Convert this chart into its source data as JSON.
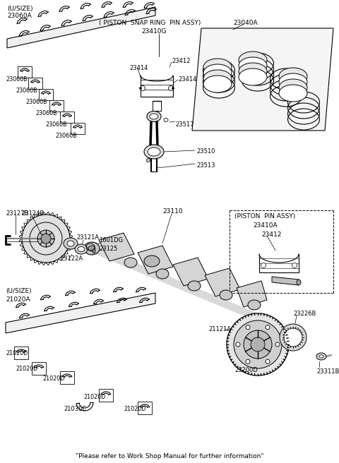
{
  "bg_color": "#ffffff",
  "line_color": "#000000",
  "gray": "#aaaaaa",
  "dark_gray": "#555555",
  "footer_text": "\"Please refer to Work Shop Manual for further information\"",
  "labels": {
    "usize_top": "(U/SIZE)",
    "part_23060A": "23060A",
    "part_23060B_1": "23060B",
    "piston_snap_ring": "( PISTON  SNAP RING  PIN ASSY)",
    "part_23410G": "23410G",
    "part_23040A": "23040A",
    "part_23414_left": "23414",
    "part_23412_top": "23412",
    "part_23414_right": "23414",
    "part_23517": "23517",
    "part_23510": "23510",
    "part_23513": "23513",
    "part_23127B": "23127B",
    "part_23124B": "23124B",
    "part_23121A": "23121A",
    "part_1601DG": "1601DG",
    "part_23125": "23125",
    "part_23122A": "23122A",
    "part_23110": "23110",
    "piston_pin_assy": "(PISTON  PIN ASSY)",
    "part_23410A": "23410A",
    "part_23412b": "23412",
    "usize_bottom": "(U/SIZE)",
    "part_21020A": "21020A",
    "part_21020D": "21020D",
    "part_21030C": "21030C",
    "part_21121A": "21121A",
    "part_23226B": "23226B",
    "part_23200D": "23200D",
    "part_23311B": "23311B"
  }
}
